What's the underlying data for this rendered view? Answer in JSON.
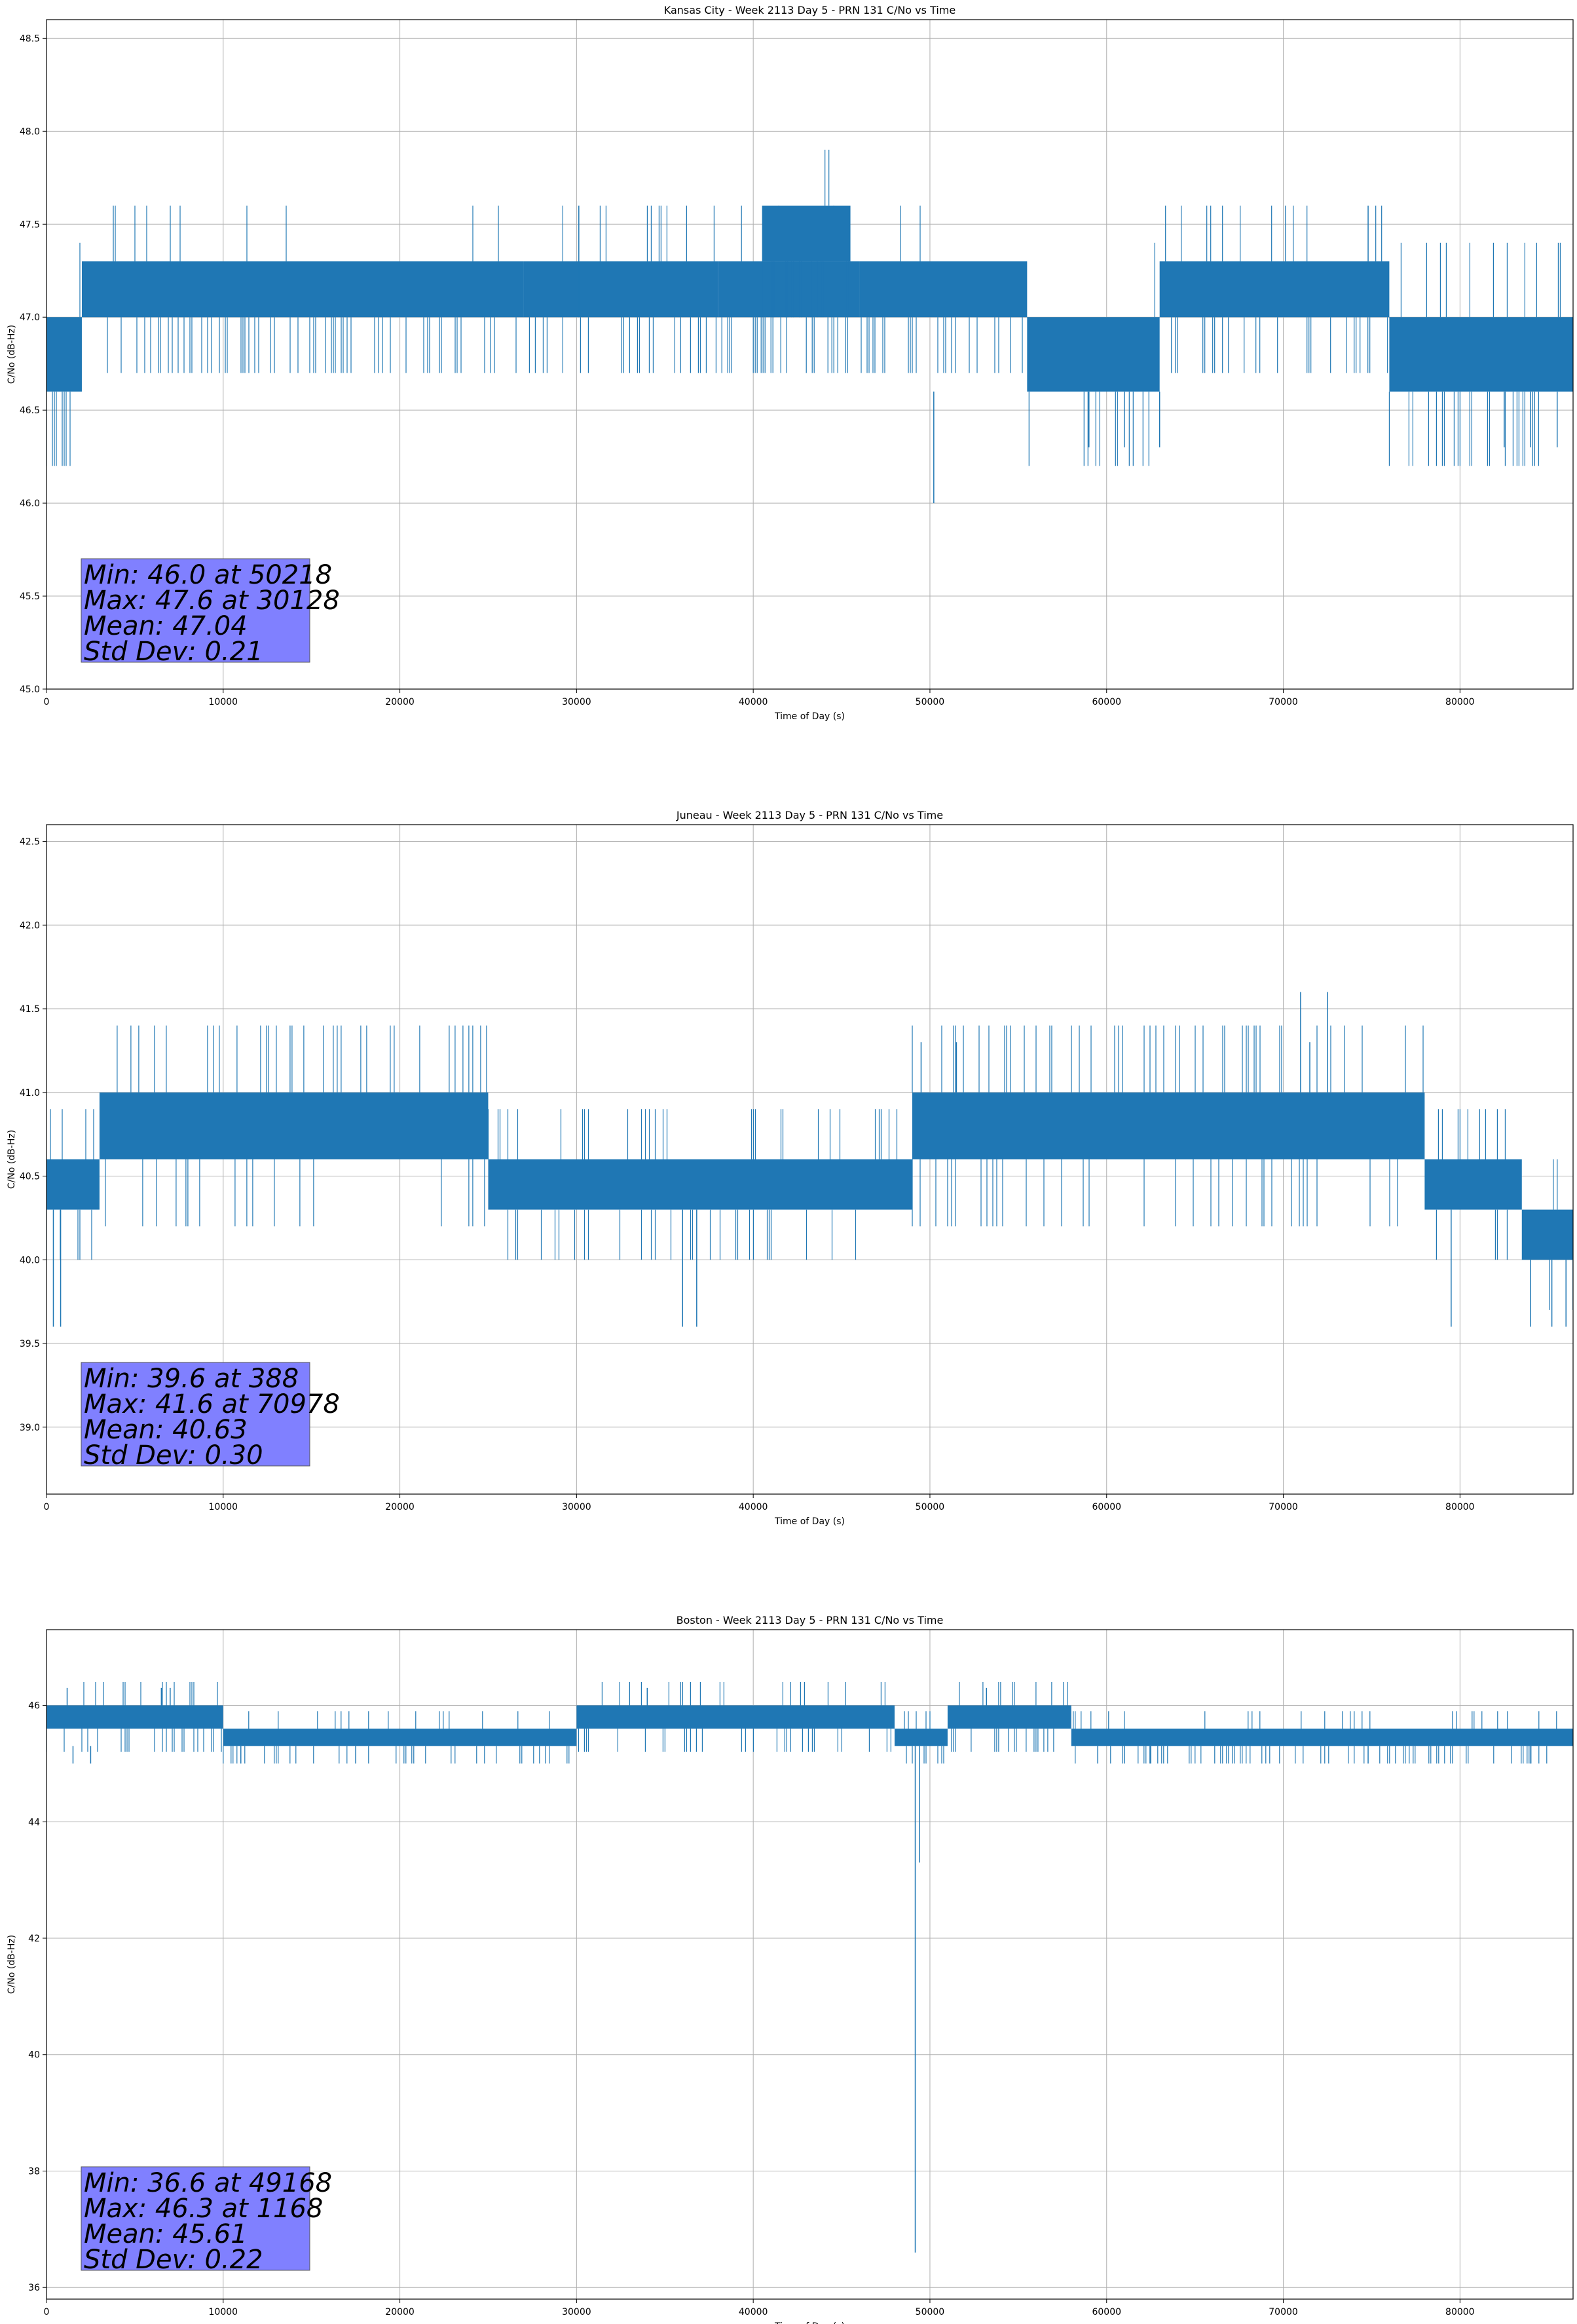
{
  "chart_data": [
    {
      "type": "line",
      "title": "Kansas City - Week 2113 Day 5 - PRN 131 C/No vs Time",
      "xlabel": "Time of Day (s)",
      "ylabel": "C/No (dB-Hz)",
      "xlim": [
        0,
        86400
      ],
      "ylim": [
        45.0,
        48.6
      ],
      "xticks": [
        0,
        10000,
        20000,
        30000,
        40000,
        50000,
        60000,
        70000,
        80000
      ],
      "yticks": [
        45.0,
        45.5,
        46.0,
        46.5,
        47.0,
        47.5,
        48.0,
        48.5
      ],
      "ytick_labels": [
        "45.0",
        "45.5",
        "46.0",
        "46.5",
        "47.0",
        "47.5",
        "48.0",
        "48.5"
      ],
      "grid": true,
      "color": "#1f77b4",
      "stats": {
        "lines": [
          "Min: 46.0 at 50218",
          "Max: 47.6 at 30128",
          "Mean: 47.04",
          "Std Dev: 0.21"
        ],
        "box_color": "#8080ff"
      },
      "segments": [
        {
          "x": [
            0,
            2000
          ],
          "lo": 46.6,
          "hi": 47.0
        },
        {
          "x": [
            2000,
            27000
          ],
          "lo": 47.0,
          "hi": 47.3
        },
        {
          "x": [
            27000,
            38000
          ],
          "lo": 47.0,
          "hi": 47.3
        },
        {
          "x": [
            38000,
            46000
          ],
          "lo": 47.0,
          "hi": 47.3
        },
        {
          "x": [
            40500,
            45500
          ],
          "lo": 47.3,
          "hi": 47.6
        },
        {
          "x": [
            46000,
            55500
          ],
          "lo": 47.0,
          "hi": 47.3
        },
        {
          "x": [
            55500,
            63000
          ],
          "lo": 46.6,
          "hi": 47.0
        },
        {
          "x": [
            63000,
            76000
          ],
          "lo": 47.0,
          "hi": 47.3
        },
        {
          "x": [
            76000,
            86400
          ],
          "lo": 46.6,
          "hi": 47.0
        }
      ],
      "spikes": [
        [
          30128,
          47.0,
          47.6
        ],
        [
          50218,
          46.6,
          46.0
        ],
        [
          74800,
          47.3,
          47.6
        ],
        [
          59000,
          46.6,
          46.3
        ],
        [
          61000,
          46.6,
          46.3
        ],
        [
          63000,
          46.6,
          46.3
        ],
        [
          82500,
          46.6,
          46.3
        ],
        [
          84000,
          46.6,
          46.3
        ],
        [
          85500,
          46.6,
          46.3
        ]
      ],
      "flicker_down": 0.55,
      "flicker_up": 0.15
    },
    {
      "type": "line",
      "title": "Juneau - Week 2113 Day 5 - PRN 131 C/No vs Time",
      "xlabel": "Time of Day (s)",
      "ylabel": "C/No (dB-Hz)",
      "xlim": [
        0,
        86400
      ],
      "ylim": [
        38.6,
        42.6
      ],
      "xticks": [
        0,
        10000,
        20000,
        30000,
        40000,
        50000,
        60000,
        70000,
        80000
      ],
      "yticks": [
        39.0,
        39.5,
        40.0,
        40.5,
        41.0,
        41.5,
        42.0,
        42.5
      ],
      "ytick_labels": [
        "39.0",
        "39.5",
        "40.0",
        "40.5",
        "41.0",
        "41.5",
        "42.0",
        "42.5"
      ],
      "grid": true,
      "color": "#1f77b4",
      "stats": {
        "lines": [
          "Min: 39.6 at 388",
          "Max: 41.6 at 70978",
          "Mean: 40.63",
          "Std Dev: 0.30"
        ],
        "box_color": "#8080ff"
      },
      "segments": [
        {
          "x": [
            0,
            3000
          ],
          "lo": 40.3,
          "hi": 40.6
        },
        {
          "x": [
            3000,
            25000
          ],
          "lo": 40.6,
          "hi": 41.0
        },
        {
          "x": [
            25000,
            49000
          ],
          "lo": 40.3,
          "hi": 40.6
        },
        {
          "x": [
            49000,
            78000
          ],
          "lo": 40.6,
          "hi": 41.0
        },
        {
          "x": [
            78000,
            83500
          ],
          "lo": 40.3,
          "hi": 40.6
        },
        {
          "x": [
            83500,
            86400
          ],
          "lo": 40.0,
          "hi": 40.3
        }
      ],
      "spikes": [
        [
          388,
          40.3,
          39.6
        ],
        [
          800,
          40.3,
          39.6
        ],
        [
          36000,
          40.3,
          39.6
        ],
        [
          36800,
          40.3,
          39.6
        ],
        [
          70978,
          41.0,
          41.6
        ],
        [
          72500,
          41.0,
          41.6
        ],
        [
          79500,
          40.3,
          39.6
        ],
        [
          84000,
          40.0,
          39.6
        ],
        [
          85200,
          40.0,
          39.6
        ],
        [
          86000,
          40.0,
          39.6
        ],
        [
          49500,
          41.0,
          41.3
        ],
        [
          51500,
          41.0,
          41.3
        ],
        [
          71500,
          41.0,
          41.3
        ]
      ],
      "flicker_down": 0.25,
      "flicker_up": 0.35
    },
    {
      "type": "line",
      "title": "Boston - Week 2113 Day 5 - PRN 131 C/No vs Time",
      "xlabel": "Time of Day (s)",
      "ylabel": "C/No (dB-Hz)",
      "xlim": [
        0,
        86400
      ],
      "ylim": [
        35.8,
        47.3
      ],
      "xticks": [
        0,
        10000,
        20000,
        30000,
        40000,
        50000,
        60000,
        70000,
        80000
      ],
      "yticks": [
        36,
        38,
        40,
        42,
        44,
        46
      ],
      "ytick_labels": [
        "36",
        "38",
        "40",
        "42",
        "44",
        "46"
      ],
      "grid": true,
      "color": "#1f77b4",
      "stats": {
        "lines": [
          "Min: 36.6 at 49168",
          "Max: 46.3 at 1168",
          "Mean: 45.61",
          "Std Dev: 0.22"
        ],
        "box_color": "#8080ff"
      },
      "segments": [
        {
          "x": [
            0,
            10000
          ],
          "lo": 45.6,
          "hi": 46.0
        },
        {
          "x": [
            10000,
            30000
          ],
          "lo": 45.3,
          "hi": 45.6
        },
        {
          "x": [
            30000,
            48000
          ],
          "lo": 45.6,
          "hi": 46.0
        },
        {
          "x": [
            48000,
            51000
          ],
          "lo": 45.3,
          "hi": 45.6
        },
        {
          "x": [
            51000,
            58000
          ],
          "lo": 45.6,
          "hi": 46.0
        },
        {
          "x": [
            58000,
            86400
          ],
          "lo": 45.3,
          "hi": 45.6
        }
      ],
      "spikes": [
        [
          49168,
          45.3,
          36.6
        ],
        [
          49400,
          45.3,
          43.3
        ],
        [
          1168,
          46.0,
          46.3
        ],
        [
          6500,
          46.0,
          46.3
        ],
        [
          7000,
          46.0,
          46.3
        ],
        [
          34000,
          46.0,
          46.3
        ],
        [
          53200,
          46.0,
          46.3
        ],
        [
          1500,
          45.3,
          45.0
        ],
        [
          2500,
          45.3,
          45.0
        ],
        [
          11000,
          45.3,
          45.0
        ],
        [
          17500,
          45.3,
          45.0
        ],
        [
          59500,
          45.3,
          45.0
        ],
        [
          61000,
          45.3,
          45.0
        ],
        [
          62500,
          45.3,
          45.0
        ],
        [
          74800,
          45.3,
          45.0
        ],
        [
          84000,
          45.3,
          45.0
        ]
      ],
      "flicker_down": 0.4,
      "flicker_up": 0.2
    }
  ]
}
